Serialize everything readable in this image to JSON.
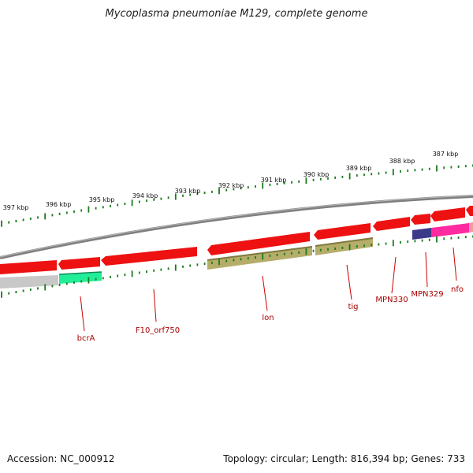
{
  "title": "Mycoplasma pneumoniae M129, complete genome",
  "footer": {
    "accession": "Accession: NC_000912",
    "topology": "Topology: circular; Length: 816,394 bp; Genes: 733"
  },
  "ruler": {
    "unit": "kbp",
    "ticks": [
      {
        "label": "387 kbp",
        "kbp": 387
      },
      {
        "label": "388 kbp",
        "kbp": 388
      },
      {
        "label": "389 kbp",
        "kbp": 389
      },
      {
        "label": "390 kbp",
        "kbp": 390
      },
      {
        "label": "391 kbp",
        "kbp": 391
      },
      {
        "label": "392 kbp",
        "kbp": 392
      },
      {
        "label": "393 kbp",
        "kbp": 393
      },
      {
        "label": "394 kbp",
        "kbp": 394
      },
      {
        "label": "395 kbp",
        "kbp": 395
      },
      {
        "label": "396 kbp",
        "kbp": 396
      },
      {
        "label": "397 kbp",
        "kbp": 397
      }
    ]
  },
  "gene_labels": [
    {
      "name": "bcrA"
    },
    {
      "name": "F10_orf750"
    },
    {
      "name": "lon"
    },
    {
      "name": "tig"
    },
    {
      "name": "MPN330"
    },
    {
      "name": "MPN329"
    },
    {
      "name": "nfo"
    }
  ],
  "colors": {
    "cds": "#ee1111",
    "cds_dark": "#bb0000",
    "backbone": "#7f7f7f",
    "tick": "#1a7a1a",
    "label_line": "#cc0000",
    "label_text": "#aa0000",
    "olive": "#b5ad6a",
    "olive_dark": "#7f7a3c",
    "mint": "#22ee99",
    "navy": "#3d3a8a",
    "magenta": "#ff2aa0",
    "grey": "#c8c8c8"
  }
}
